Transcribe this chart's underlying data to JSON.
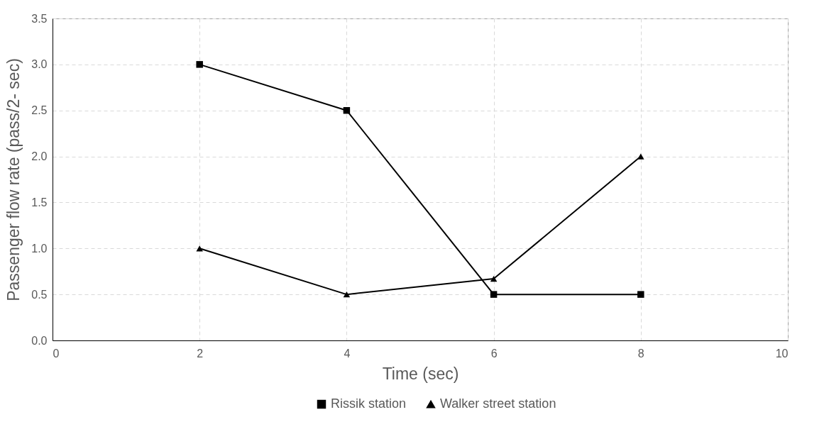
{
  "chart_data": {
    "type": "line",
    "xlabel": "Time (sec)",
    "ylabel": "Passenger flow rate (pass/2- sec)",
    "xlim": [
      0,
      10
    ],
    "xticks": [
      0,
      2,
      4,
      6,
      8,
      10
    ],
    "ylim": [
      0,
      3.5
    ],
    "yticks": [
      {
        "value": 0,
        "label": "0.0"
      },
      {
        "value": 0.5,
        "label": "0.5"
      },
      {
        "value": 1,
        "label": "1.0"
      },
      {
        "value": 1.5,
        "label": "1.5"
      },
      {
        "value": 2,
        "label": "2.0"
      },
      {
        "value": 2.5,
        "label": "2.5"
      },
      {
        "value": 3,
        "label": "3.0"
      },
      {
        "value": 3.5,
        "label": "3.5"
      }
    ],
    "x": [
      2,
      4,
      6,
      8
    ],
    "series": [
      {
        "name": "Rissik station",
        "color": "#000000",
        "marker": "square",
        "values": [
          3.0,
          2.5,
          0.5,
          0.5
        ]
      },
      {
        "name": "Walker street station",
        "color": "#000000",
        "marker": "triangle",
        "values": [
          1.0,
          0.5,
          0.67,
          2.0
        ]
      }
    ],
    "grid": true,
    "legend": "bottom",
    "line_style": "solid"
  }
}
